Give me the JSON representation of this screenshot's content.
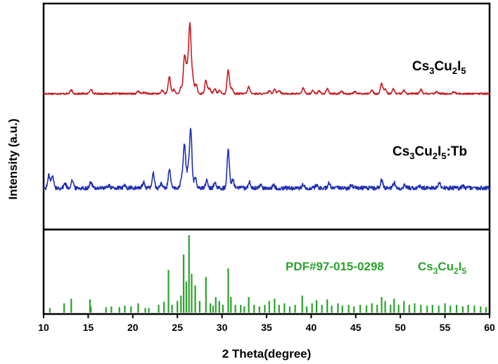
{
  "chart_data": {
    "type": "line",
    "xlabel": "2 Theta(degree)",
    "ylabel": "Intensity (a.u.)",
    "xlim": [
      10,
      60
    ],
    "xticks": [
      10,
      15,
      20,
      25,
      30,
      35,
      40,
      45,
      50,
      55,
      60
    ],
    "grid": false,
    "colors": {
      "red": "#c8191e",
      "blue": "#1f2fb2",
      "green": "#2aa12a"
    },
    "panels": [
      {
        "series": [
          {
            "name": "Cs3Cu2I5",
            "color": "#c8191e",
            "baseline": 0.03,
            "noise": 0.012,
            "peaks": [
              [
                13.1,
                0.05
              ],
              [
                15.3,
                0.07
              ],
              [
                20.6,
                0.04
              ],
              [
                21.3,
                0.02
              ],
              [
                23.3,
                0.05
              ],
              [
                24.1,
                0.25
              ],
              [
                24.6,
                0.06
              ],
              [
                25.4,
                0.09
              ],
              [
                25.8,
                0.55
              ],
              [
                26.1,
                0.35
              ],
              [
                26.4,
                1.0
              ],
              [
                26.7,
                0.25
              ],
              [
                27.1,
                0.14
              ],
              [
                28.2,
                0.2
              ],
              [
                28.6,
                0.08
              ],
              [
                29.2,
                0.07
              ],
              [
                29.7,
                0.05
              ],
              [
                30.7,
                0.35
              ],
              [
                31.1,
                0.08
              ],
              [
                33.0,
                0.1
              ],
              [
                35.3,
                0.04
              ],
              [
                35.9,
                0.07
              ],
              [
                36.4,
                0.05
              ],
              [
                39.1,
                0.08
              ],
              [
                40.2,
                0.05
              ],
              [
                41.8,
                0.07
              ],
              [
                40.9,
                0.04
              ],
              [
                43.4,
                0.04
              ],
              [
                44.9,
                0.03
              ],
              [
                46.8,
                0.05
              ],
              [
                47.9,
                0.15
              ],
              [
                48.3,
                0.06
              ],
              [
                49.2,
                0.07
              ],
              [
                50.4,
                0.05
              ],
              [
                52.3,
                0.06
              ],
              [
                54.1,
                0.03
              ],
              [
                56.0,
                0.03
              ]
            ]
          },
          {
            "name": "Cs3Cu2I5:Tb",
            "color": "#1f2fb2",
            "baseline": 0.06,
            "noise": 0.035,
            "peaks": [
              [
                10.6,
                0.22
              ],
              [
                11.0,
                0.2
              ],
              [
                12.4,
                0.08
              ],
              [
                13.2,
                0.14
              ],
              [
                15.3,
                0.1
              ],
              [
                17.3,
                0.05
              ],
              [
                19.1,
                0.04
              ],
              [
                21.2,
                0.1
              ],
              [
                22.3,
                0.25
              ],
              [
                23.2,
                0.08
              ],
              [
                24.1,
                0.32
              ],
              [
                25.5,
                0.2
              ],
              [
                25.8,
                0.75
              ],
              [
                26.2,
                0.35
              ],
              [
                26.5,
                1.0
              ],
              [
                27.0,
                0.2
              ],
              [
                28.3,
                0.14
              ],
              [
                29.2,
                0.09
              ],
              [
                30.7,
                0.65
              ],
              [
                31.2,
                0.15
              ],
              [
                33.1,
                0.1
              ],
              [
                34.3,
                0.05
              ],
              [
                35.8,
                0.05
              ],
              [
                39.1,
                0.06
              ],
              [
                40.6,
                0.05
              ],
              [
                42.0,
                0.08
              ],
              [
                44.5,
                0.05
              ],
              [
                47.9,
                0.14
              ],
              [
                49.3,
                0.09
              ],
              [
                50.5,
                0.05
              ],
              [
                52.2,
                0.04
              ],
              [
                54.4,
                0.08
              ],
              [
                57.0,
                0.04
              ]
            ]
          }
        ],
        "annotations": [
          "Cs3Cu2I5",
          "Cs3Cu2I5:Tb"
        ]
      },
      {
        "series": [
          {
            "name": "PDF#97-015-0298 Cs3Cu2I5",
            "type": "stick",
            "color": "#2aa12a",
            "sticks": [
              [
                10.7,
                0.06
              ],
              [
                12.3,
                0.12
              ],
              [
                13.1,
                0.18
              ],
              [
                15.2,
                0.17
              ],
              [
                15.3,
                0.08
              ],
              [
                17.0,
                0.07
              ],
              [
                17.6,
                0.08
              ],
              [
                18.5,
                0.07
              ],
              [
                19.1,
                0.09
              ],
              [
                19.8,
                0.08
              ],
              [
                20.6,
                0.12
              ],
              [
                21.4,
                0.06
              ],
              [
                21.8,
                0.06
              ],
              [
                22.9,
                0.1
              ],
              [
                23.5,
                0.14
              ],
              [
                24.0,
                0.55
              ],
              [
                24.4,
                0.1
              ],
              [
                25.0,
                0.15
              ],
              [
                25.4,
                0.22
              ],
              [
                25.7,
                0.75
              ],
              [
                26.0,
                0.4
              ],
              [
                26.3,
                1.0
              ],
              [
                26.6,
                0.5
              ],
              [
                27.0,
                0.35
              ],
              [
                27.5,
                0.15
              ],
              [
                28.2,
                0.46
              ],
              [
                28.7,
                0.12
              ],
              [
                29.0,
                0.09
              ],
              [
                29.3,
                0.2
              ],
              [
                29.7,
                0.15
              ],
              [
                30.1,
                0.1
              ],
              [
                30.7,
                0.57
              ],
              [
                31.0,
                0.2
              ],
              [
                31.5,
                0.1
              ],
              [
                32.1,
                0.1
              ],
              [
                32.5,
                0.08
              ],
              [
                33.0,
                0.2
              ],
              [
                33.6,
                0.1
              ],
              [
                34.2,
                0.08
              ],
              [
                34.8,
                0.1
              ],
              [
                35.3,
                0.15
              ],
              [
                35.9,
                0.18
              ],
              [
                36.4,
                0.1
              ],
              [
                37.0,
                0.12
              ],
              [
                37.6,
                0.08
              ],
              [
                38.2,
                0.1
              ],
              [
                39.0,
                0.22
              ],
              [
                39.5,
                0.08
              ],
              [
                40.1,
                0.12
              ],
              [
                40.6,
                0.16
              ],
              [
                41.2,
                0.1
              ],
              [
                41.8,
                0.17
              ],
              [
                42.3,
                0.09
              ],
              [
                43.0,
                0.12
              ],
              [
                43.5,
                0.09
              ],
              [
                44.2,
                0.1
              ],
              [
                44.8,
                0.08
              ],
              [
                45.5,
                0.1
              ],
              [
                46.2,
                0.09
              ],
              [
                46.8,
                0.12
              ],
              [
                47.4,
                0.1
              ],
              [
                47.9,
                0.2
              ],
              [
                48.3,
                0.15
              ],
              [
                48.9,
                0.1
              ],
              [
                49.3,
                0.18
              ],
              [
                49.8,
                0.1
              ],
              [
                50.4,
                0.15
              ],
              [
                51.0,
                0.1
              ],
              [
                51.6,
                0.12
              ],
              [
                52.3,
                0.1
              ],
              [
                53.0,
                0.09
              ],
              [
                53.6,
                0.1
              ],
              [
                54.3,
                0.09
              ],
              [
                55.0,
                0.12
              ],
              [
                55.6,
                0.09
              ],
              [
                56.3,
                0.1
              ],
              [
                57.0,
                0.08
              ],
              [
                57.6,
                0.1
              ],
              [
                58.3,
                0.09
              ],
              [
                59.0,
                0.08
              ],
              [
                59.6,
                0.07
              ]
            ]
          }
        ],
        "annotations": [
          "PDF#97-015-0298",
          "Cs3Cu2I5"
        ]
      }
    ]
  }
}
